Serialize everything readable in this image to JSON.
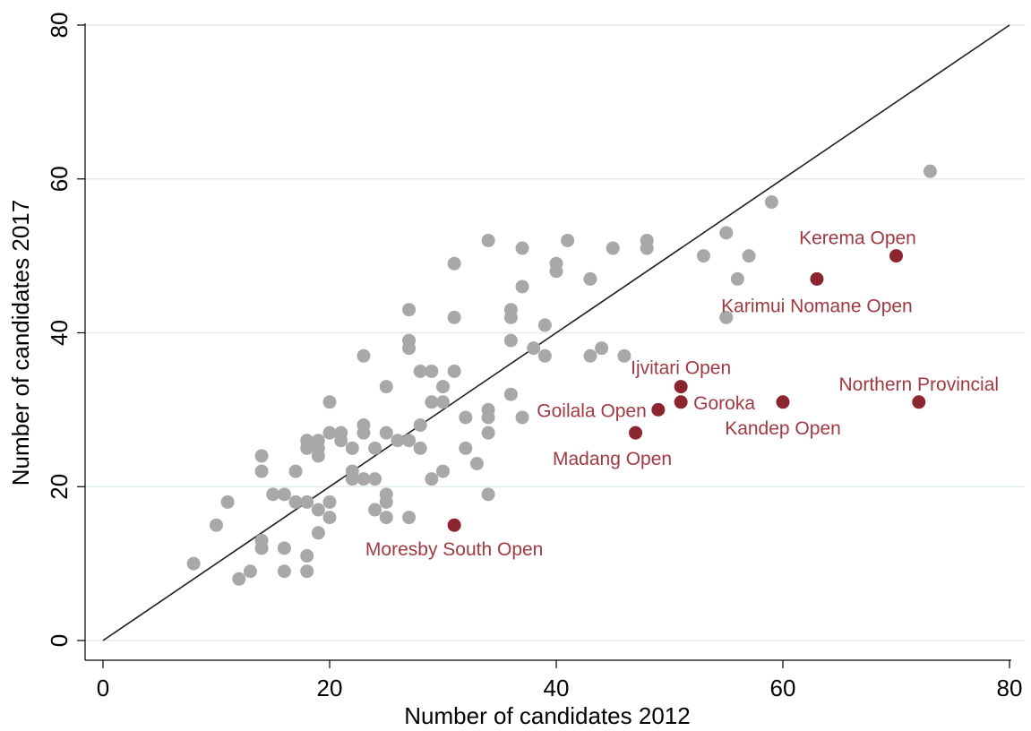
{
  "chart_data": {
    "type": "scatter",
    "title": "",
    "xlabel": "Number of candidates 2012",
    "ylabel": "Number of candidates 2017",
    "xlim": [
      0,
      80
    ],
    "ylim": [
      0,
      80
    ],
    "xticks": [
      0,
      20,
      40,
      60,
      80
    ],
    "yticks": [
      0,
      20,
      40,
      60,
      80
    ],
    "grid": "horizontal",
    "reference_line": {
      "x": [
        0,
        80
      ],
      "y": [
        0,
        80
      ]
    },
    "colors": {
      "gray_points": "#a8a8a8",
      "highlight_points": "#8b2530",
      "highlight_labels": "#a03a42",
      "reference_line": "#1f1f1f",
      "grid": "#e3ecef"
    },
    "series": [
      {
        "points": [
          [
            8,
            10
          ],
          [
            10,
            15
          ],
          [
            11,
            18
          ],
          [
            12,
            8
          ],
          [
            13,
            9
          ],
          [
            14,
            12
          ],
          [
            14,
            13
          ],
          [
            14,
            22
          ],
          [
            14,
            24
          ],
          [
            15,
            19
          ],
          [
            16,
            9
          ],
          [
            16,
            12
          ],
          [
            16,
            19
          ],
          [
            17,
            18
          ],
          [
            17,
            22
          ],
          [
            18,
            9
          ],
          [
            18,
            11
          ],
          [
            18,
            18
          ],
          [
            18,
            25
          ],
          [
            18,
            26
          ],
          [
            19,
            14
          ],
          [
            19,
            17
          ],
          [
            19,
            24
          ],
          [
            19,
            25
          ],
          [
            19,
            26
          ],
          [
            20,
            16
          ],
          [
            20,
            18
          ],
          [
            20,
            27
          ],
          [
            20,
            31
          ],
          [
            21,
            26
          ],
          [
            21,
            27
          ],
          [
            22,
            21
          ],
          [
            22,
            22
          ],
          [
            22,
            25
          ],
          [
            23,
            21
          ],
          [
            23,
            27
          ],
          [
            23,
            28
          ],
          [
            23,
            37
          ],
          [
            24,
            17
          ],
          [
            24,
            21
          ],
          [
            24,
            25
          ],
          [
            25,
            16
          ],
          [
            25,
            18
          ],
          [
            25,
            19
          ],
          [
            25,
            27
          ],
          [
            25,
            33
          ],
          [
            26,
            26
          ],
          [
            27,
            16
          ],
          [
            27,
            26
          ],
          [
            27,
            38
          ],
          [
            27,
            39
          ],
          [
            27,
            43
          ],
          [
            28,
            25
          ],
          [
            28,
            28
          ],
          [
            28,
            35
          ],
          [
            29,
            21
          ],
          [
            29,
            31
          ],
          [
            29,
            35
          ],
          [
            30,
            22
          ],
          [
            30,
            31
          ],
          [
            30,
            33
          ],
          [
            31,
            35
          ],
          [
            31,
            42
          ],
          [
            31,
            49
          ],
          [
            32,
            25
          ],
          [
            32,
            29
          ],
          [
            33,
            23
          ],
          [
            34,
            19
          ],
          [
            34,
            27
          ],
          [
            34,
            29
          ],
          [
            34,
            30
          ],
          [
            34,
            52
          ],
          [
            36,
            32
          ],
          [
            36,
            39
          ],
          [
            36,
            42
          ],
          [
            36,
            43
          ],
          [
            37,
            29
          ],
          [
            37,
            46
          ],
          [
            37,
            51
          ],
          [
            38,
            38
          ],
          [
            39,
            37
          ],
          [
            39,
            41
          ],
          [
            40,
            48
          ],
          [
            40,
            49
          ],
          [
            41,
            52
          ],
          [
            43,
            37
          ],
          [
            43,
            47
          ],
          [
            44,
            38
          ],
          [
            45,
            51
          ],
          [
            46,
            37
          ],
          [
            48,
            51
          ],
          [
            48,
            52
          ],
          [
            53,
            50
          ],
          [
            55,
            42
          ],
          [
            55,
            53
          ],
          [
            56,
            47
          ],
          [
            57,
            50
          ],
          [
            59,
            57
          ],
          [
            73,
            61
          ]
        ]
      },
      {
        "points": [
          {
            "x": 31,
            "y": 15,
            "label": "Moresby South Open"
          },
          {
            "x": 47,
            "y": 27,
            "label": "Madang Open"
          },
          {
            "x": 49,
            "y": 30,
            "label": "Goilala Open"
          },
          {
            "x": 51,
            "y": 31,
            "label": "Goroka"
          },
          {
            "x": 51,
            "y": 33,
            "label": "Ijvitari Open"
          },
          {
            "x": 60,
            "y": 31,
            "label": "Kandep Open"
          },
          {
            "x": 63,
            "y": 47,
            "label": "Karimui Nomane Open"
          },
          {
            "x": 70,
            "y": 50,
            "label": "Kerema Open"
          },
          {
            "x": 72,
            "y": 31,
            "label": "Northern Provincial"
          }
        ]
      }
    ]
  }
}
